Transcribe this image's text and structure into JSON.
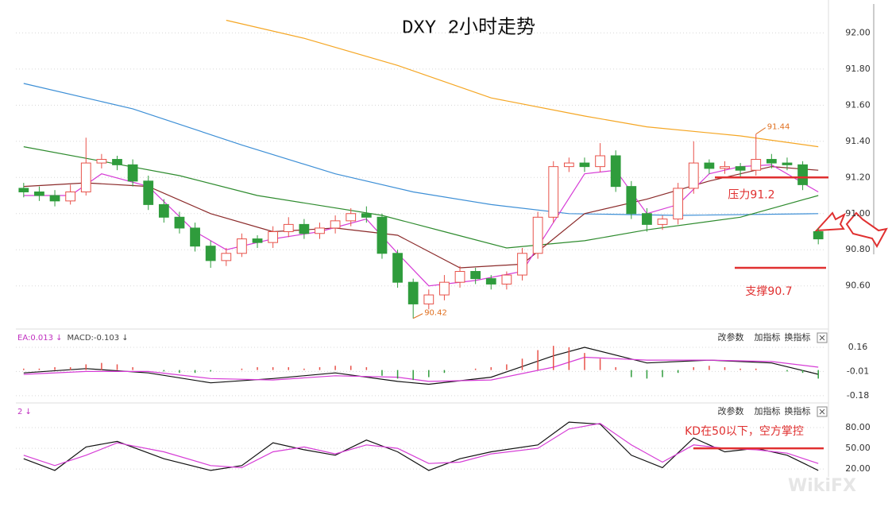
{
  "title": "DXY 2小时走势",
  "watermark": "WikiFX",
  "chart_data": [
    {
      "type": "candlestick",
      "xlim": [
        -0.5,
        51.5
      ],
      "ylim": [
        90.37,
        92.16
      ],
      "yticks": [
        {
          "value": 92,
          "label": "92.00"
        },
        {
          "value": 91.8,
          "label": "91.80"
        },
        {
          "value": 91.6,
          "label": "91.60"
        },
        {
          "value": 91.4,
          "label": "91.40"
        },
        {
          "value": 91.2,
          "label": "91.20"
        },
        {
          "value": 91,
          "label": "91.00"
        },
        {
          "value": 90.8,
          "label": "90.80"
        },
        {
          "value": 90.6,
          "label": "90.60"
        }
      ],
      "grid": true,
      "up_color": "#e8524a",
      "down_color": "#2f9c3c",
      "open": [
        91.14,
        91.12,
        91.1,
        91.07,
        91.12,
        91.28,
        91.3,
        91.27,
        91.18,
        91.05,
        90.98,
        90.92,
        90.82,
        90.74,
        90.78,
        90.86,
        90.84,
        90.9,
        90.94,
        90.89,
        90.92,
        90.96,
        91.0,
        90.98,
        90.78,
        90.62,
        90.5,
        90.55,
        90.62,
        90.68,
        90.64,
        90.61,
        90.66,
        90.78,
        90.98,
        91.26,
        91.28,
        91.26,
        91.32,
        91.15,
        91.0,
        90.94,
        90.97,
        91.14,
        91.28,
        91.25,
        91.26,
        91.24,
        91.3,
        91.28,
        91.27,
        90.9
      ],
      "high": [
        91.17,
        91.15,
        91.13,
        91.16,
        91.42,
        91.33,
        91.32,
        91.3,
        91.21,
        91.08,
        91.01,
        90.95,
        90.85,
        90.81,
        90.89,
        90.88,
        90.93,
        90.98,
        90.97,
        90.95,
        90.99,
        91.03,
        91.04,
        91.0,
        90.8,
        90.64,
        90.58,
        90.66,
        90.71,
        90.7,
        90.66,
        90.68,
        90.81,
        91.01,
        91.29,
        91.31,
        91.31,
        91.39,
        91.35,
        91.18,
        91.03,
        90.99,
        91.17,
        91.4,
        91.3,
        91.29,
        91.28,
        91.44,
        91.33,
        91.31,
        91.29,
        90.92
      ],
      "low": [
        91.09,
        91.07,
        91.04,
        91.05,
        91.1,
        91.25,
        91.24,
        91.15,
        91.02,
        90.95,
        90.89,
        90.79,
        90.7,
        90.71,
        90.76,
        90.81,
        90.81,
        90.87,
        90.86,
        90.86,
        90.89,
        90.93,
        90.95,
        90.75,
        90.59,
        90.42,
        90.47,
        90.52,
        90.59,
        90.61,
        90.58,
        90.58,
        90.63,
        90.75,
        90.95,
        91.23,
        91.23,
        91.23,
        91.12,
        90.97,
        90.9,
        90.91,
        90.94,
        91.11,
        91.22,
        91.22,
        91.2,
        91.21,
        91.25,
        91.24,
        91.13,
        90.83
      ],
      "close": [
        91.12,
        91.1,
        91.07,
        91.12,
        91.28,
        91.3,
        91.27,
        91.18,
        91.05,
        90.98,
        90.92,
        90.82,
        90.74,
        90.78,
        90.86,
        90.84,
        90.9,
        90.94,
        90.89,
        90.92,
        90.96,
        91.0,
        90.98,
        90.78,
        90.62,
        90.5,
        90.55,
        90.62,
        90.68,
        90.64,
        90.61,
        90.66,
        90.78,
        90.98,
        91.26,
        91.28,
        91.26,
        91.32,
        91.15,
        91.0,
        90.94,
        90.97,
        91.14,
        91.28,
        91.25,
        91.26,
        91.24,
        91.3,
        91.28,
        91.27,
        91.16,
        90.86
      ],
      "lines": [
        {
          "color": "#f5a623",
          "x": [
            13,
            18,
            24,
            30,
            36,
            40,
            46,
            51
          ],
          "values": [
            92.07,
            91.97,
            91.82,
            91.64,
            91.54,
            91.48,
            91.43,
            91.37
          ]
        },
        {
          "color": "#3d8fd6",
          "x": [
            0,
            7,
            14,
            20,
            25,
            30,
            35,
            42,
            51
          ],
          "values": [
            91.72,
            91.58,
            91.38,
            91.22,
            91.12,
            91.05,
            91.0,
            90.99,
            91.0
          ]
        },
        {
          "color": "#2e8b2e",
          "x": [
            0,
            5,
            10,
            15,
            23,
            27,
            31,
            36,
            40,
            46,
            51
          ],
          "values": [
            91.37,
            91.29,
            91.21,
            91.1,
            90.99,
            90.9,
            90.81,
            90.85,
            90.91,
            90.98,
            91.1
          ]
        },
        {
          "color": "#8b2a2a",
          "x": [
            0,
            4,
            8,
            12,
            16,
            20,
            24,
            28,
            32,
            36,
            40,
            44,
            48,
            51
          ],
          "values": [
            91.15,
            91.17,
            91.15,
            91.0,
            90.9,
            90.92,
            90.88,
            90.7,
            90.72,
            91.0,
            91.08,
            91.18,
            91.26,
            91.24
          ]
        },
        {
          "color": "#d63cd6",
          "x": [
            0,
            3,
            5,
            8,
            11,
            13,
            16,
            19,
            22,
            24,
            26,
            29,
            32,
            34,
            36,
            38,
            40,
            42,
            44,
            46,
            48,
            51
          ],
          "values": [
            91.1,
            91.1,
            91.22,
            91.15,
            90.9,
            90.8,
            90.86,
            90.9,
            90.97,
            90.78,
            90.6,
            90.63,
            90.68,
            90.95,
            91.22,
            91.24,
            91.0,
            91.05,
            91.22,
            91.26,
            91.27,
            91.12
          ]
        }
      ],
      "high_label": "91.44",
      "low_label": "90.42",
      "levels": [
        {
          "value": 91.2,
          "label": "压力91.2",
          "color": "#e03030"
        },
        {
          "value": 90.7,
          "label": "支撑90.7",
          "color": "#e03030"
        }
      ]
    },
    {
      "type": "macd",
      "header": [
        "EA:0.013 ↓",
        "MACD:-0.103 ↓"
      ],
      "toolbar": [
        "改参数",
        "加指标",
        "换指标"
      ],
      "xlim": [
        -0.5,
        51.5
      ],
      "ylim": [
        -0.22,
        0.21
      ],
      "yticks": [
        0.16,
        -0.01,
        -0.18
      ],
      "grid": true,
      "up_color": "#e8524a",
      "down_color": "#2f9c3c",
      "hist": [
        0.01,
        0.01,
        0.02,
        0.02,
        0.04,
        0.05,
        0.04,
        0.02,
        0.0,
        -0.01,
        -0.02,
        -0.02,
        -0.01,
        0.0,
        0.01,
        0.02,
        0.02,
        0.02,
        0.01,
        0.02,
        0.03,
        0.03,
        0.02,
        -0.04,
        -0.06,
        -0.07,
        -0.05,
        -0.02,
        0.0,
        0.01,
        0.02,
        0.04,
        0.08,
        0.14,
        0.17,
        0.16,
        0.12,
        0.08,
        0.02,
        -0.05,
        -0.06,
        -0.05,
        -0.02,
        0.02,
        0.03,
        0.02,
        0.01,
        0.01,
        0.0,
        -0.01,
        -0.02,
        -0.06
      ],
      "lines": [
        {
          "color": "#111111",
          "x": [
            0,
            4,
            8,
            12,
            16,
            20,
            24,
            26,
            30,
            34,
            36,
            40,
            44,
            48,
            51
          ],
          "values": [
            -0.02,
            0.01,
            -0.02,
            -0.09,
            -0.06,
            -0.02,
            -0.08,
            -0.1,
            -0.05,
            0.1,
            0.16,
            0.05,
            0.07,
            0.05,
            -0.03
          ]
        },
        {
          "color": "#d63cd6",
          "x": [
            0,
            4,
            8,
            12,
            16,
            20,
            24,
            26,
            30,
            34,
            36,
            40,
            44,
            48,
            51
          ],
          "values": [
            -0.03,
            -0.01,
            -0.01,
            -0.06,
            -0.07,
            -0.04,
            -0.05,
            -0.08,
            -0.07,
            0.02,
            0.09,
            0.07,
            0.07,
            0.06,
            0.02
          ]
        }
      ]
    },
    {
      "type": "kd",
      "header": [
        "2 ↓"
      ],
      "toolbar": [
        "改参数",
        "加指标",
        "换指标"
      ],
      "xlim": [
        -0.5,
        51.5
      ],
      "ylim": [
        11,
        110
      ],
      "yticks": [
        {
          "value": 80,
          "label": "80.00"
        },
        {
          "value": 50,
          "label": "50.00"
        },
        {
          "value": 20,
          "label": "20.00"
        }
      ],
      "grid": true,
      "lines": [
        {
          "color": "#111111",
          "x": [
            0,
            2,
            4,
            6,
            9,
            12,
            14,
            16,
            18,
            20,
            22,
            24,
            26,
            28,
            30,
            33,
            35,
            37,
            39,
            41,
            43,
            45,
            47,
            49,
            51
          ],
          "values": [
            35,
            18,
            52,
            60,
            35,
            18,
            25,
            58,
            48,
            40,
            62,
            45,
            18,
            35,
            45,
            55,
            88,
            85,
            40,
            22,
            65,
            45,
            50,
            40,
            18
          ]
        },
        {
          "color": "#d63cd6",
          "x": [
            0,
            2,
            4,
            6,
            9,
            12,
            14,
            16,
            18,
            20,
            22,
            24,
            26,
            28,
            30,
            33,
            35,
            37,
            39,
            41,
            43,
            45,
            47,
            49,
            51
          ],
          "values": [
            40,
            25,
            40,
            58,
            45,
            25,
            22,
            45,
            52,
            42,
            55,
            50,
            28,
            30,
            42,
            50,
            78,
            86,
            55,
            30,
            55,
            50,
            48,
            43,
            28
          ]
        }
      ],
      "level": {
        "value": 50,
        "label": "KD在50以下，空方掌控",
        "color": "#e03030"
      }
    }
  ]
}
